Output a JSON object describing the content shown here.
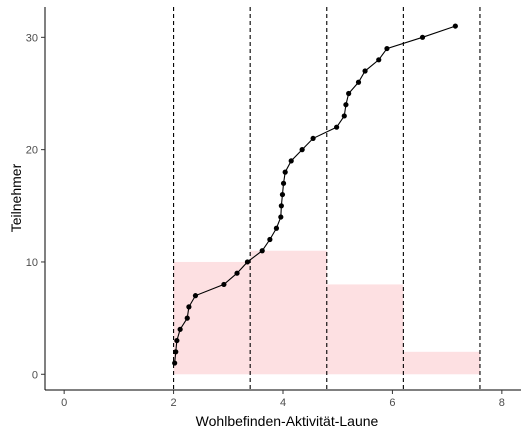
{
  "chart_data": {
    "type": "scatter",
    "xlabel": "Wohlbefinden-Aktivität-Laune",
    "ylabel": "Teilnehmer",
    "xlim": [
      -0.35,
      8.35
    ],
    "ylim": [
      -1.4,
      32.7
    ],
    "x_ticks": [
      0,
      2,
      4,
      6,
      8
    ],
    "y_ticks": [
      0,
      10,
      20,
      30
    ],
    "x_tick_labels": [
      "0",
      "2",
      "4",
      "6",
      "8"
    ],
    "y_tick_labels": [
      "0",
      "10",
      "20",
      "30"
    ],
    "grid": false,
    "legend": "none",
    "histogram_bins": [
      {
        "x0": 2.0,
        "x1": 3.4,
        "count": 10
      },
      {
        "x0": 3.4,
        "x1": 4.8,
        "count": 11
      },
      {
        "x0": 4.8,
        "x1": 6.2,
        "count": 8
      },
      {
        "x0": 6.2,
        "x1": 7.6,
        "count": 2
      }
    ],
    "vlines": [
      2.0,
      3.4,
      4.8,
      6.2,
      7.6
    ],
    "points": [
      {
        "x": 2.02,
        "y": 1
      },
      {
        "x": 2.04,
        "y": 2
      },
      {
        "x": 2.06,
        "y": 3
      },
      {
        "x": 2.12,
        "y": 4
      },
      {
        "x": 2.25,
        "y": 5
      },
      {
        "x": 2.28,
        "y": 6
      },
      {
        "x": 2.4,
        "y": 7
      },
      {
        "x": 2.92,
        "y": 8
      },
      {
        "x": 3.16,
        "y": 9
      },
      {
        "x": 3.35,
        "y": 10
      },
      {
        "x": 3.62,
        "y": 11
      },
      {
        "x": 3.76,
        "y": 12
      },
      {
        "x": 3.88,
        "y": 13
      },
      {
        "x": 3.96,
        "y": 14
      },
      {
        "x": 3.97,
        "y": 15
      },
      {
        "x": 3.99,
        "y": 16
      },
      {
        "x": 4.01,
        "y": 17
      },
      {
        "x": 4.04,
        "y": 18
      },
      {
        "x": 4.15,
        "y": 19
      },
      {
        "x": 4.35,
        "y": 20
      },
      {
        "x": 4.55,
        "y": 21
      },
      {
        "x": 4.98,
        "y": 22
      },
      {
        "x": 5.12,
        "y": 23
      },
      {
        "x": 5.15,
        "y": 24
      },
      {
        "x": 5.2,
        "y": 25
      },
      {
        "x": 5.38,
        "y": 26
      },
      {
        "x": 5.5,
        "y": 27
      },
      {
        "x": 5.75,
        "y": 28
      },
      {
        "x": 5.9,
        "y": 29
      },
      {
        "x": 6.55,
        "y": 30
      },
      {
        "x": 7.15,
        "y": 31
      }
    ],
    "colors": {
      "histogram_fill": "#fde0e2",
      "line": "#000000",
      "point": "#000000",
      "vline": "#000000",
      "axis": "#000000",
      "tick_text": "#4d4d4d"
    }
  }
}
